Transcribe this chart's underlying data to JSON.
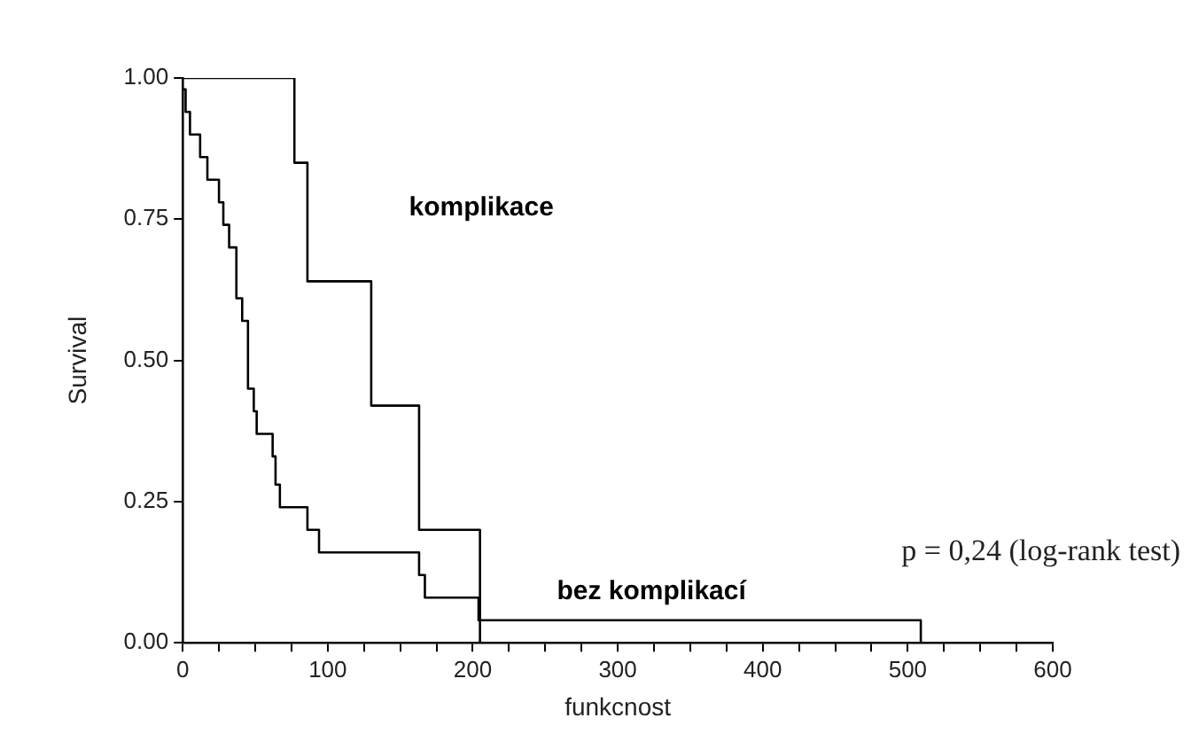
{
  "chart_data": {
    "type": "step",
    "xlabel": "funkcnost",
    "ylabel": "Survival",
    "series": [
      {
        "name": "komplikace",
        "color": "#000000",
        "x": [
          0,
          77,
          86,
          130,
          163,
          205
        ],
        "values": [
          1,
          0.85,
          0.64,
          0.42,
          0.2,
          0
        ]
      },
      {
        "name": "bez komplikací",
        "color": "#000000",
        "x": [
          0,
          2,
          5,
          12,
          17,
          25,
          28,
          32,
          37,
          41,
          45,
          49,
          51,
          62,
          64,
          67,
          86,
          94,
          163,
          167,
          204,
          255,
          509
        ],
        "values": [
          0.98,
          0.94,
          0.9,
          0.86,
          0.82,
          0.78,
          0.74,
          0.7,
          0.61,
          0.57,
          0.45,
          0.41,
          0.37,
          0.33,
          0.28,
          0.24,
          0.2,
          0.16,
          0.12,
          0.08,
          0.04,
          0.04,
          0
        ]
      }
    ],
    "annotations": [
      "p = 0,24 (log-rank test)"
    ],
    "xlim": [
      0,
      600
    ],
    "ylim": [
      0,
      1
    ],
    "xticks": [
      0,
      {
        "value": 25,
        "label": null
      },
      {
        "value": 50,
        "label": null
      },
      {
        "value": 75,
        "label": null
      },
      100,
      {
        "value": 125,
        "label": null
      },
      {
        "value": 150,
        "label": null
      },
      {
        "value": 175,
        "label": null
      },
      200,
      {
        "value": 225,
        "label": null
      },
      {
        "value": 250,
        "label": null
      },
      {
        "value": 275,
        "label": null
      },
      300,
      {
        "value": 325,
        "label": null
      },
      {
        "value": 350,
        "label": null
      },
      {
        "value": 375,
        "label": null
      },
      400,
      {
        "value": 425,
        "label": null
      },
      {
        "value": 450,
        "label": null
      },
      {
        "value": 475,
        "label": null
      },
      500,
      {
        "value": 525,
        "label": null
      },
      {
        "value": 550,
        "label": null
      },
      {
        "value": 575,
        "label": null
      },
      600
    ],
    "yticks": [
      {
        "value": 0,
        "label": "0.00"
      },
      {
        "value": 0.25,
        "label": "0.25"
      },
      {
        "value": 0.5,
        "label": "0.50"
      },
      {
        "value": 0.75,
        "label": "0.75"
      },
      {
        "value": 1,
        "label": "1.00"
      }
    ],
    "grid": false,
    "legend": false,
    "marker": "none",
    "line_style": "solid"
  }
}
